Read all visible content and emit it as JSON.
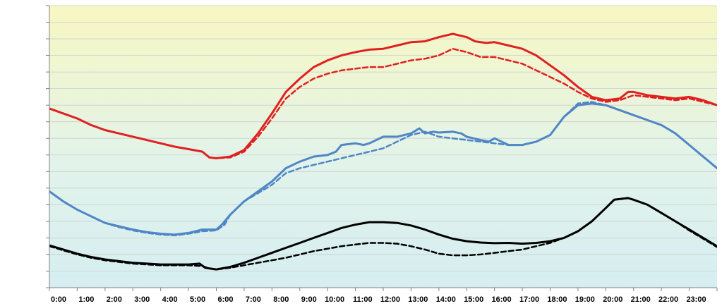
{
  "chart_data": {
    "type": "line",
    "title": "",
    "xlabel": "",
    "ylabel": "",
    "x_tick_labels": [
      "0:00",
      "1:00",
      "2:00",
      "3:00",
      "4:00",
      "5:00",
      "6:00",
      "7:00",
      "8:00",
      "9:00",
      "10:00",
      "11:00",
      "12:00",
      "13:00",
      "14:00",
      "15:00",
      "16:00",
      "17:00",
      "18:00",
      "19:00",
      "20:00",
      "21:00",
      "22:00",
      "23:00"
    ],
    "xlim": [
      0,
      24
    ],
    "ylim": [
      0,
      17
    ],
    "y_gridlines": 17,
    "y_tick_labels_visible": false,
    "grid": true,
    "legend": "none",
    "background_gradient": [
      "#f7f7c2",
      "#e2f3ea",
      "#d6eef2"
    ],
    "series": [
      {
        "color": "#e02020",
        "dash": "solid",
        "width": 3,
        "points": [
          [
            0,
            10.8
          ],
          [
            0.5,
            10.5
          ],
          [
            1,
            10.2
          ],
          [
            1.5,
            9.8
          ],
          [
            2,
            9.5
          ],
          [
            2.5,
            9.3
          ],
          [
            3,
            9.1
          ],
          [
            3.5,
            8.9
          ],
          [
            4,
            8.7
          ],
          [
            4.5,
            8.5
          ],
          [
            5,
            8.35
          ],
          [
            5.5,
            8.2
          ],
          [
            5.75,
            7.85
          ],
          [
            6,
            7.8
          ],
          [
            6.5,
            7.9
          ],
          [
            7,
            8.3
          ],
          [
            7.5,
            9.3
          ],
          [
            8,
            10.5
          ],
          [
            8.5,
            11.8
          ],
          [
            9,
            12.6
          ],
          [
            9.5,
            13.3
          ],
          [
            10,
            13.7
          ],
          [
            10.5,
            14.0
          ],
          [
            11,
            14.2
          ],
          [
            11.5,
            14.35
          ],
          [
            12,
            14.4
          ],
          [
            12.5,
            14.6
          ],
          [
            13,
            14.8
          ],
          [
            13.5,
            14.85
          ],
          [
            14,
            15.1
          ],
          [
            14.5,
            15.3
          ],
          [
            15,
            15.1
          ],
          [
            15.3,
            14.85
          ],
          [
            15.7,
            14.75
          ],
          [
            16,
            14.8
          ],
          [
            16.5,
            14.6
          ],
          [
            17,
            14.4
          ],
          [
            17.5,
            14.0
          ],
          [
            18,
            13.4
          ],
          [
            18.5,
            12.8
          ],
          [
            19,
            12.1
          ],
          [
            19.5,
            11.5
          ],
          [
            20,
            11.3
          ],
          [
            20.5,
            11.4
          ],
          [
            20.8,
            11.8
          ],
          [
            21,
            11.8
          ],
          [
            21.5,
            11.6
          ],
          [
            22,
            11.5
          ],
          [
            22.5,
            11.4
          ],
          [
            23,
            11.5
          ],
          [
            23.5,
            11.3
          ],
          [
            24,
            11.0
          ]
        ]
      },
      {
        "color": "#e02020",
        "dash": "dashed",
        "width": 2.5,
        "points": [
          [
            0,
            10.8
          ],
          [
            0.5,
            10.5
          ],
          [
            1,
            10.2
          ],
          [
            1.5,
            9.8
          ],
          [
            2,
            9.5
          ],
          [
            2.5,
            9.3
          ],
          [
            3,
            9.1
          ],
          [
            3.5,
            8.9
          ],
          [
            4,
            8.7
          ],
          [
            4.5,
            8.5
          ],
          [
            5,
            8.35
          ],
          [
            5.5,
            8.2
          ],
          [
            5.75,
            7.85
          ],
          [
            6,
            7.8
          ],
          [
            6.5,
            7.85
          ],
          [
            7,
            8.2
          ],
          [
            7.5,
            9.1
          ],
          [
            8,
            10.2
          ],
          [
            8.5,
            11.4
          ],
          [
            9,
            12.1
          ],
          [
            9.5,
            12.6
          ],
          [
            10,
            12.9
          ],
          [
            10.5,
            13.1
          ],
          [
            11,
            13.2
          ],
          [
            11.5,
            13.3
          ],
          [
            12,
            13.3
          ],
          [
            12.5,
            13.5
          ],
          [
            13,
            13.7
          ],
          [
            13.5,
            13.8
          ],
          [
            14,
            14.0
          ],
          [
            14.5,
            14.4
          ],
          [
            15,
            14.2
          ],
          [
            15.5,
            13.9
          ],
          [
            16,
            13.9
          ],
          [
            16.5,
            13.7
          ],
          [
            17,
            13.5
          ],
          [
            17.5,
            13.1
          ],
          [
            18,
            12.7
          ],
          [
            18.5,
            12.3
          ],
          [
            19,
            11.8
          ],
          [
            19.5,
            11.4
          ],
          [
            20,
            11.2
          ],
          [
            20.5,
            11.3
          ],
          [
            21,
            11.6
          ],
          [
            21.5,
            11.5
          ],
          [
            22,
            11.4
          ],
          [
            22.5,
            11.3
          ],
          [
            23,
            11.4
          ],
          [
            23.5,
            11.2
          ],
          [
            24,
            11.0
          ]
        ]
      },
      {
        "color": "#4f86c6",
        "dash": "solid",
        "width": 3,
        "points": [
          [
            0,
            5.8
          ],
          [
            0.5,
            5.2
          ],
          [
            1,
            4.7
          ],
          [
            1.5,
            4.3
          ],
          [
            2,
            3.9
          ],
          [
            2.5,
            3.7
          ],
          [
            3,
            3.5
          ],
          [
            3.5,
            3.35
          ],
          [
            4,
            3.25
          ],
          [
            4.5,
            3.2
          ],
          [
            5,
            3.3
          ],
          [
            5.5,
            3.5
          ],
          [
            6,
            3.5
          ],
          [
            6.2,
            3.8
          ],
          [
            6.5,
            4.4
          ],
          [
            7,
            5.2
          ],
          [
            7.5,
            5.8
          ],
          [
            8,
            6.4
          ],
          [
            8.5,
            7.2
          ],
          [
            9,
            7.6
          ],
          [
            9.5,
            7.9
          ],
          [
            10,
            8.0
          ],
          [
            10.3,
            8.2
          ],
          [
            10.5,
            8.6
          ],
          [
            11,
            8.7
          ],
          [
            11.3,
            8.6
          ],
          [
            11.5,
            8.7
          ],
          [
            12,
            9.1
          ],
          [
            12.5,
            9.1
          ],
          [
            13,
            9.3
          ],
          [
            13.3,
            9.6
          ],
          [
            13.5,
            9.3
          ],
          [
            13.8,
            9.4
          ],
          [
            14,
            9.35
          ],
          [
            14.5,
            9.4
          ],
          [
            14.8,
            9.3
          ],
          [
            15,
            9.1
          ],
          [
            15.5,
            8.9
          ],
          [
            15.8,
            8.8
          ],
          [
            16,
            9.0
          ],
          [
            16.5,
            8.6
          ],
          [
            17,
            8.6
          ],
          [
            17.5,
            8.8
          ],
          [
            18,
            9.2
          ],
          [
            18.5,
            10.3
          ],
          [
            19,
            11.0
          ],
          [
            19.5,
            11.1
          ],
          [
            20,
            11.0
          ],
          [
            20.5,
            10.7
          ],
          [
            21,
            10.4
          ],
          [
            21.5,
            10.1
          ],
          [
            22,
            9.8
          ],
          [
            22.5,
            9.3
          ],
          [
            23,
            8.6
          ],
          [
            23.5,
            7.9
          ],
          [
            24,
            7.2
          ]
        ]
      },
      {
        "color": "#4f86c6",
        "dash": "dashed",
        "width": 2.5,
        "points": [
          [
            0,
            5.8
          ],
          [
            0.5,
            5.2
          ],
          [
            1,
            4.7
          ],
          [
            1.5,
            4.3
          ],
          [
            2,
            3.9
          ],
          [
            2.5,
            3.65
          ],
          [
            3,
            3.45
          ],
          [
            3.5,
            3.3
          ],
          [
            4,
            3.2
          ],
          [
            4.5,
            3.15
          ],
          [
            5,
            3.25
          ],
          [
            5.5,
            3.4
          ],
          [
            6,
            3.45
          ],
          [
            6.3,
            3.8
          ],
          [
            6.5,
            4.4
          ],
          [
            7,
            5.2
          ],
          [
            7.5,
            5.7
          ],
          [
            8,
            6.2
          ],
          [
            8.5,
            6.9
          ],
          [
            9,
            7.2
          ],
          [
            9.5,
            7.4
          ],
          [
            10,
            7.6
          ],
          [
            10.5,
            7.8
          ],
          [
            11,
            8.0
          ],
          [
            11.5,
            8.2
          ],
          [
            12,
            8.4
          ],
          [
            12.5,
            8.8
          ],
          [
            13,
            9.2
          ],
          [
            13.5,
            9.4
          ],
          [
            14,
            9.1
          ],
          [
            14.5,
            9.0
          ],
          [
            15,
            8.9
          ],
          [
            15.5,
            8.8
          ],
          [
            16,
            8.7
          ],
          [
            16.5,
            8.6
          ],
          [
            17,
            8.6
          ],
          [
            17.5,
            8.8
          ],
          [
            18,
            9.2
          ],
          [
            18.5,
            10.3
          ],
          [
            19,
            11.1
          ],
          [
            19.5,
            11.2
          ],
          [
            20,
            11.0
          ],
          [
            20.5,
            10.7
          ],
          [
            21,
            10.4
          ],
          [
            21.5,
            10.1
          ],
          [
            22,
            9.8
          ],
          [
            22.5,
            9.3
          ],
          [
            23,
            8.6
          ],
          [
            23.5,
            7.9
          ],
          [
            24,
            7.2
          ]
        ]
      },
      {
        "color": "#000000",
        "dash": "solid",
        "width": 3,
        "points": [
          [
            0,
            2.55
          ],
          [
            0.5,
            2.3
          ],
          [
            1,
            2.05
          ],
          [
            1.5,
            1.85
          ],
          [
            2,
            1.7
          ],
          [
            2.5,
            1.6
          ],
          [
            3,
            1.5
          ],
          [
            3.5,
            1.45
          ],
          [
            4,
            1.4
          ],
          [
            4.5,
            1.4
          ],
          [
            5,
            1.4
          ],
          [
            5.4,
            1.45
          ],
          [
            5.6,
            1.2
          ],
          [
            6,
            1.1
          ],
          [
            6.5,
            1.25
          ],
          [
            7,
            1.5
          ],
          [
            7.5,
            1.8
          ],
          [
            8,
            2.1
          ],
          [
            8.5,
            2.4
          ],
          [
            9,
            2.7
          ],
          [
            9.5,
            3.0
          ],
          [
            10,
            3.3
          ],
          [
            10.5,
            3.6
          ],
          [
            11,
            3.8
          ],
          [
            11.5,
            3.95
          ],
          [
            12,
            3.95
          ],
          [
            12.5,
            3.9
          ],
          [
            13,
            3.75
          ],
          [
            13.5,
            3.5
          ],
          [
            14,
            3.2
          ],
          [
            14.5,
            2.95
          ],
          [
            15,
            2.8
          ],
          [
            15.5,
            2.72
          ],
          [
            16,
            2.68
          ],
          [
            16.5,
            2.7
          ],
          [
            17,
            2.65
          ],
          [
            17.5,
            2.7
          ],
          [
            18,
            2.8
          ],
          [
            18.5,
            3.0
          ],
          [
            19,
            3.4
          ],
          [
            19.5,
            4.0
          ],
          [
            20,
            4.8
          ],
          [
            20.3,
            5.3
          ],
          [
            20.8,
            5.4
          ],
          [
            21,
            5.3
          ],
          [
            21.5,
            5.0
          ],
          [
            22,
            4.5
          ],
          [
            22.5,
            4.0
          ],
          [
            23,
            3.5
          ],
          [
            23.5,
            3.0
          ],
          [
            24,
            2.5
          ]
        ]
      },
      {
        "color": "#000000",
        "dash": "dashed",
        "width": 2.5,
        "points": [
          [
            0,
            2.5
          ],
          [
            0.5,
            2.25
          ],
          [
            1,
            2.0
          ],
          [
            1.5,
            1.8
          ],
          [
            2,
            1.65
          ],
          [
            2.5,
            1.55
          ],
          [
            3,
            1.45
          ],
          [
            3.5,
            1.4
          ],
          [
            4,
            1.35
          ],
          [
            4.5,
            1.35
          ],
          [
            5,
            1.35
          ],
          [
            5.5,
            1.3
          ],
          [
            5.75,
            1.15
          ],
          [
            6,
            1.1
          ],
          [
            6.5,
            1.2
          ],
          [
            7,
            1.35
          ],
          [
            7.5,
            1.5
          ],
          [
            8,
            1.65
          ],
          [
            8.5,
            1.8
          ],
          [
            9,
            2.0
          ],
          [
            9.5,
            2.2
          ],
          [
            10,
            2.35
          ],
          [
            10.5,
            2.5
          ],
          [
            11,
            2.6
          ],
          [
            11.5,
            2.7
          ],
          [
            12,
            2.7
          ],
          [
            12.5,
            2.65
          ],
          [
            13,
            2.5
          ],
          [
            13.5,
            2.3
          ],
          [
            14,
            2.05
          ],
          [
            14.5,
            1.95
          ],
          [
            15,
            1.95
          ],
          [
            15.5,
            2.0
          ],
          [
            16,
            2.1
          ],
          [
            16.5,
            2.2
          ],
          [
            17,
            2.3
          ],
          [
            17.5,
            2.5
          ],
          [
            18,
            2.7
          ],
          [
            18.5,
            3.0
          ],
          [
            19,
            3.4
          ],
          [
            19.5,
            4.0
          ],
          [
            20,
            4.8
          ],
          [
            20.3,
            5.3
          ],
          [
            20.8,
            5.4
          ],
          [
            21,
            5.3
          ],
          [
            21.5,
            5.0
          ],
          [
            22,
            4.5
          ],
          [
            22.5,
            4.0
          ],
          [
            23,
            3.45
          ],
          [
            23.5,
            2.95
          ],
          [
            24,
            2.45
          ]
        ]
      }
    ]
  }
}
